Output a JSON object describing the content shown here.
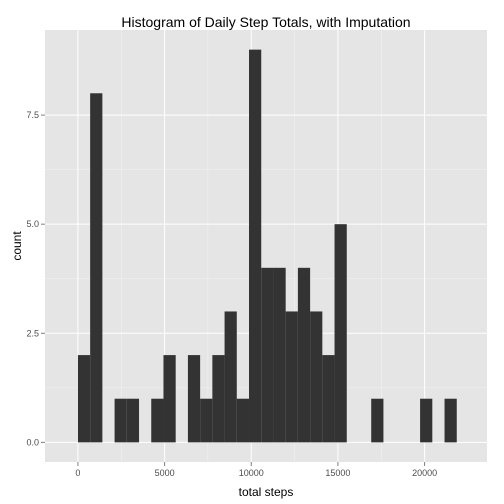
{
  "chart_data": {
    "type": "bar",
    "title": "Histogram of Daily Step Totals, with Imputation",
    "xlabel": "total steps",
    "ylabel": "count",
    "xlim": [
      -1900,
      23600
    ],
    "ylim": [
      -0.45,
      9.45
    ],
    "x_ticks": [
      {
        "value": 0,
        "label": "0"
      },
      {
        "value": 5000,
        "label": "5000"
      },
      {
        "value": 10000,
        "label": "10000"
      },
      {
        "value": 15000,
        "label": "15000"
      },
      {
        "value": 20000,
        "label": "20000"
      }
    ],
    "y_ticks": [
      {
        "value": 0,
        "label": "0.0"
      },
      {
        "value": 2.5,
        "label": "2.5"
      },
      {
        "value": 5,
        "label": "5.0"
      },
      {
        "value": 7.5,
        "label": "7.5"
      }
    ],
    "bin_width": 705,
    "bin_starts": [
      0,
      705,
      1410,
      2115,
      2820,
      3525,
      4230,
      4935,
      5640,
      6345,
      7050,
      7755,
      8460,
      9165,
      9870,
      10575,
      11280,
      11985,
      12690,
      13395,
      14100,
      14805,
      15510,
      16215,
      16920,
      17625,
      18330,
      19035,
      19740,
      20445,
      21150
    ],
    "counts": [
      2,
      8,
      0,
      1,
      1,
      0,
      1,
      2,
      0,
      2,
      1,
      2,
      3,
      1,
      9,
      4,
      4,
      3,
      4,
      3,
      2,
      5,
      0,
      0,
      1,
      0,
      0,
      0,
      1,
      0,
      1
    ],
    "grid": true,
    "colors": {
      "panel": "#e5e5e5",
      "grid_major": "#ffffff",
      "grid_minor": "#f2f2f2",
      "bar": "#333333",
      "tick": "#7f7f7f"
    }
  }
}
